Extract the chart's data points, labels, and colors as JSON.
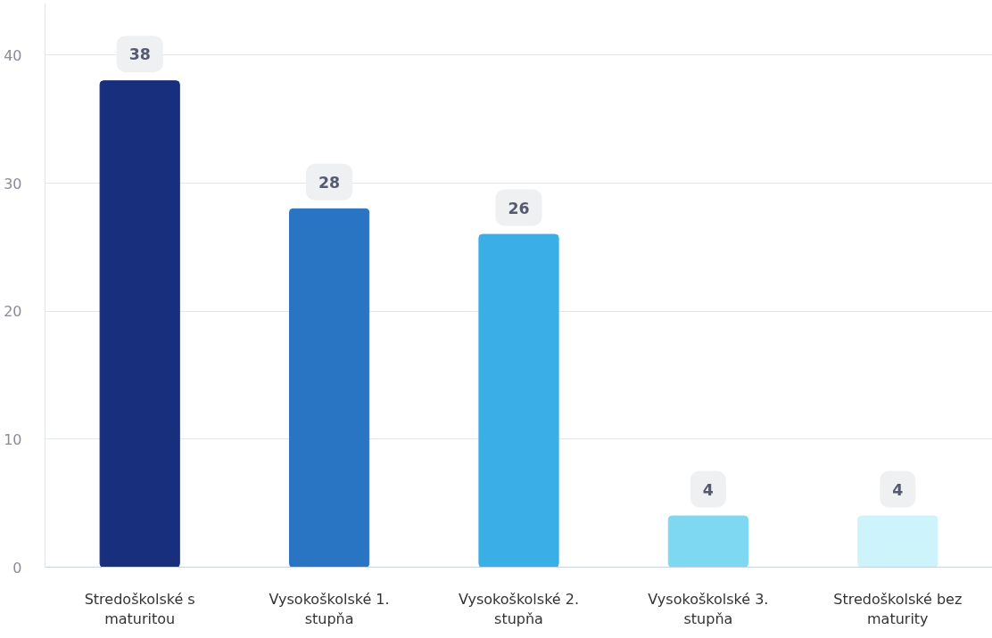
{
  "chart_data": {
    "type": "bar",
    "categories": [
      "Stredoškolské s maturitou",
      "Vysokoškolské 1. stupňa",
      "Vysokoškolské 2. stupňa",
      "Vysokoškolské 3. stupňa",
      "Stredoškolské bez maturity"
    ],
    "values": [
      38,
      28,
      26,
      4,
      4
    ],
    "colors": [
      "#172f7d",
      "#2a74c4",
      "#3aaee6",
      "#7fd8f2",
      "#cdf3fb"
    ],
    "ylim": [
      0,
      44
    ],
    "yticks": [
      0,
      10,
      20,
      30,
      40
    ],
    "grid": "y",
    "data_labels": true
  }
}
